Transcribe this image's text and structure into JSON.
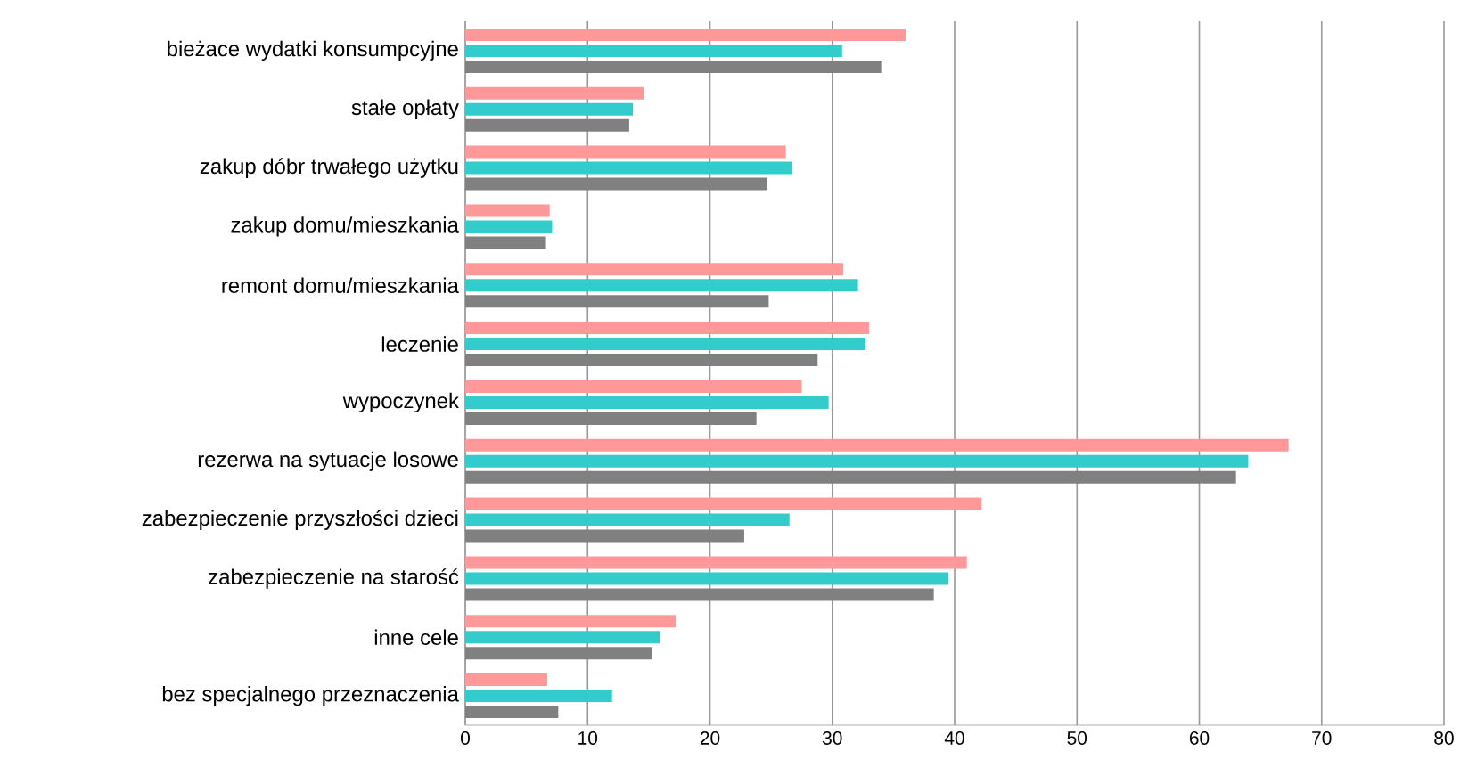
{
  "chart_data": {
    "type": "bar",
    "orientation": "horizontal",
    "categories": [
      "bieżace wydatki konsumpcyjne",
      "stałe opłaty",
      "zakup dóbr trwałego użytku",
      "zakup domu/mieszkania",
      "remont domu/mieszkania",
      "leczenie",
      "wypoczynek",
      "rezerwa na sytuacje losowe",
      "zabezpieczenie przyszłości dzieci",
      "zabezpieczenie na starość",
      "inne cele",
      "bez specjalnego przeznaczenia"
    ],
    "series": [
      {
        "color": "#ff9999",
        "values": [
          36.0,
          14.6,
          26.2,
          6.9,
          30.9,
          33.0,
          27.5,
          67.3,
          42.2,
          41.0,
          17.2,
          6.7
        ]
      },
      {
        "color": "#33cccc",
        "values": [
          30.8,
          13.7,
          26.7,
          7.1,
          32.1,
          32.7,
          29.7,
          64.0,
          26.5,
          39.5,
          15.9,
          12.0
        ]
      },
      {
        "color": "#808080",
        "values": [
          34.0,
          13.4,
          24.7,
          6.6,
          24.8,
          28.8,
          23.8,
          63.0,
          22.8,
          38.3,
          15.3,
          7.6
        ]
      }
    ],
    "xlim": [
      0,
      80
    ],
    "xticks": [
      0,
      10,
      20,
      30,
      40,
      50,
      60,
      70,
      80
    ],
    "grid": "x"
  }
}
